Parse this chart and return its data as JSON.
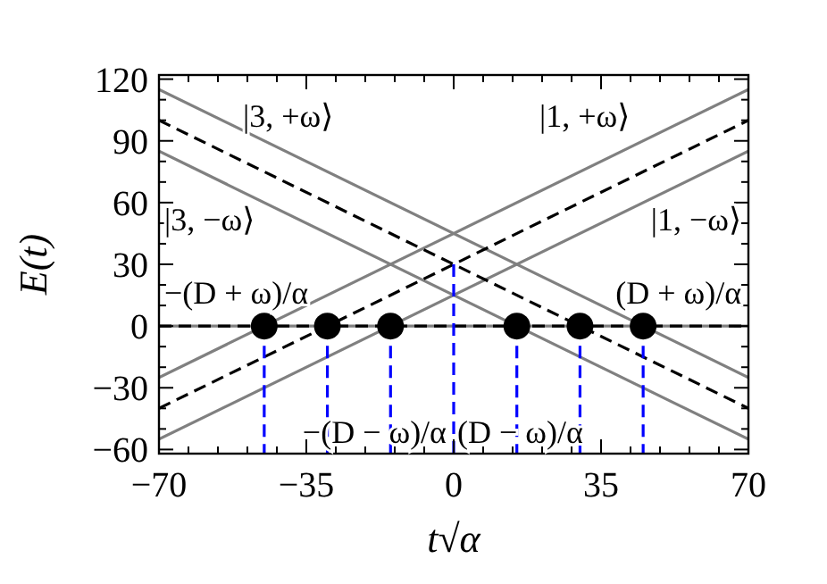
{
  "chart_data": {
    "type": "line",
    "xlabel": "t√α",
    "ylabel": "E(t)",
    "xlim": [
      -70,
      70
    ],
    "ylim": [
      -62,
      122
    ],
    "xticks": [
      -70,
      {
        "value": -63,
        "label": null
      },
      {
        "value": -56,
        "label": null
      },
      {
        "value": -49,
        "label": null
      },
      {
        "value": -42,
        "label": null
      },
      -35,
      {
        "value": -28,
        "label": null
      },
      {
        "value": -21,
        "label": null
      },
      {
        "value": -14,
        "label": null
      },
      {
        "value": -7,
        "label": null
      },
      0,
      {
        "value": 7,
        "label": null
      },
      {
        "value": 14,
        "label": null
      },
      {
        "value": 21,
        "label": null
      },
      {
        "value": 28,
        "label": null
      },
      35,
      {
        "value": 42,
        "label": null
      },
      {
        "value": 49,
        "label": null
      },
      {
        "value": 56,
        "label": null
      },
      {
        "value": 63,
        "label": null
      },
      70
    ],
    "yticks": [
      -60,
      {
        "value": -50,
        "label": null
      },
      {
        "value": -40,
        "label": null
      },
      -30,
      {
        "value": -20,
        "label": null
      },
      {
        "value": -10,
        "label": null
      },
      0,
      {
        "value": 10,
        "label": null
      },
      {
        "value": 20,
        "label": null
      },
      30,
      {
        "value": 40,
        "label": null
      },
      {
        "value": 50,
        "label": null
      },
      60,
      {
        "value": 70,
        "label": null
      },
      {
        "value": 80,
        "label": null
      },
      90,
      {
        "value": 100,
        "label": null
      },
      {
        "value": 110,
        "label": null
      },
      120
    ],
    "grid": false,
    "marker": "none",
    "line_style": "solid",
    "series": [
      {
        "color": "#808080",
        "x": [
          -70,
          70
        ],
        "values": [
          115,
          -25
        ]
      },
      {
        "color": "#808080",
        "x": [
          -70,
          70
        ],
        "values": [
          85,
          -55
        ]
      },
      {
        "color": "#808080",
        "x": [
          -70,
          70
        ],
        "values": [
          -25,
          115
        ]
      },
      {
        "color": "#808080",
        "x": [
          -70,
          70
        ],
        "values": [
          -55,
          85
        ]
      },
      {
        "color": "#808080",
        "x": [
          -70,
          70
        ],
        "values": [
          0,
          0
        ]
      },
      {
        "color": "#000000",
        "line_style": "dashed",
        "x": [
          -70,
          70
        ],
        "values": [
          100,
          -40
        ]
      },
      {
        "color": "#000000",
        "line_style": "dashed",
        "x": [
          -70,
          70
        ],
        "values": [
          -40,
          100
        ]
      },
      {
        "color": "#000000",
        "line_style": "dashed",
        "x": [
          -70,
          70
        ],
        "values": [
          0,
          0
        ]
      },
      {
        "color": "#0000ff",
        "line_style": "dashed",
        "x": [
          -45,
          -45
        ],
        "values": [
          0,
          -62
        ]
      },
      {
        "color": "#0000ff",
        "line_style": "dashed",
        "x": [
          -30,
          -30
        ],
        "values": [
          0,
          -62
        ]
      },
      {
        "color": "#0000ff",
        "line_style": "dashed",
        "x": [
          -15,
          -15
        ],
        "values": [
          0,
          -62
        ]
      },
      {
        "color": "#0000ff",
        "line_style": "dashed",
        "x": [
          0,
          0
        ],
        "values": [
          30,
          -62
        ]
      },
      {
        "color": "#0000ff",
        "line_style": "dashed",
        "x": [
          15,
          15
        ],
        "values": [
          0,
          -62
        ]
      },
      {
        "color": "#0000ff",
        "line_style": "dashed",
        "x": [
          30,
          30
        ],
        "values": [
          0,
          -62
        ]
      },
      {
        "color": "#0000ff",
        "line_style": "dashed",
        "x": [
          45,
          45
        ],
        "values": [
          0,
          -62
        ]
      },
      {
        "type": "scatter",
        "marker": "circle",
        "color": "#000000",
        "x": [
          -45,
          -30,
          -15,
          15,
          30,
          45
        ],
        "values": [
          0,
          0,
          0,
          0,
          0,
          0
        ]
      }
    ],
    "annotations": [
      "|3, +ω⟩",
      "|1, +ω⟩",
      "|3, −ω⟩",
      "|1, −ω⟩",
      "−(D + ω)/α",
      "(D + ω)/α",
      "−(D − ω)/α",
      "(D − ω)/α"
    ]
  }
}
